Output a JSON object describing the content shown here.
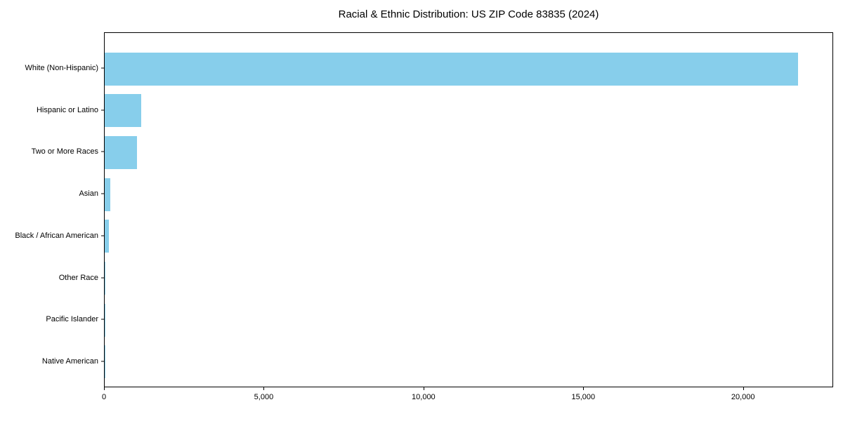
{
  "title": "Racial & Ethnic Distribution: US ZIP Code 83835 (2024)",
  "chart_data": {
    "type": "bar",
    "orientation": "horizontal",
    "title": "Racial & Ethnic Distribution: US ZIP Code 83835 (2024)",
    "xlabel": "",
    "ylabel": "",
    "categories": [
      "White (Non-Hispanic)",
      "Hispanic or Latino",
      "Two or More Races",
      "Asian",
      "Black / African American",
      "Other Race",
      "Pacific Islander",
      "Native American"
    ],
    "values": [
      21700,
      1150,
      1020,
      170,
      125,
      30,
      20,
      8
    ],
    "xlim": [
      0,
      22820
    ],
    "x_ticks": [
      0,
      5000,
      10000,
      15000,
      20000
    ],
    "x_tick_labels": [
      "0",
      "5,000",
      "10,000",
      "15,000",
      "20,000"
    ],
    "bar_color": "#87CEEB",
    "spine_color": "#000000",
    "background_color": "#FFFFFF",
    "grid": false,
    "legend": null
  }
}
